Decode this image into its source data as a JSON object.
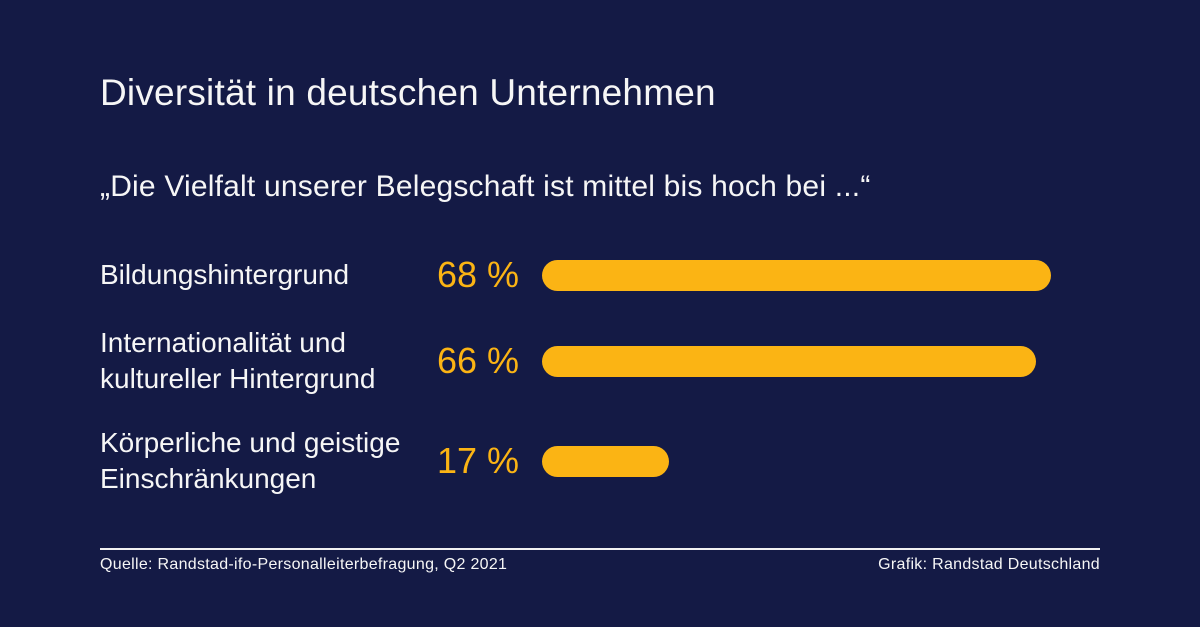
{
  "theme": {
    "background": "#141a45",
    "accent": "#fbb414",
    "text": "#f6f6f6"
  },
  "header": {
    "title": "Diversität in deutschen Unternehmen",
    "subtitle": "„Die Vielfalt unserer Belegschaft ist mittel bis hoch bei ...“"
  },
  "rows": [
    {
      "label_lines": [
        "Bildungshintergrund"
      ],
      "value": 68,
      "value_label": "68 %"
    },
    {
      "label_lines": [
        "Internationalität und",
        "kultureller Hintergrund"
      ],
      "value": 66,
      "value_label": "66 %"
    },
    {
      "label_lines": [
        "Körperliche und geistige",
        "Einschränkungen"
      ],
      "value": 17,
      "value_label": "17 %"
    }
  ],
  "footer": {
    "source": "Quelle: Randstad-ifo-Personalleiterbefragung, Q2 2021",
    "credit": "Grafik: Randstad Deutschland"
  },
  "chart_data": {
    "type": "bar",
    "orientation": "horizontal",
    "title": "Diversität in deutschen Unternehmen",
    "subtitle": "„Die Vielfalt unserer Belegschaft ist mittel bis hoch bei ...“",
    "categories": [
      "Bildungshintergrund",
      "Internationalität und kultureller Hintergrund",
      "Körperliche und geistige Einschränkungen"
    ],
    "values": [
      68,
      66,
      17
    ],
    "unit": "%",
    "xlim": [
      0,
      100
    ],
    "grid": false,
    "legend": false,
    "bar_color": "#fbb414",
    "background_color": "#141a45",
    "source": "Quelle: Randstad-ifo-Personalleiterbefragung, Q2 2021",
    "credit": "Grafik: Randstad Deutschland"
  }
}
